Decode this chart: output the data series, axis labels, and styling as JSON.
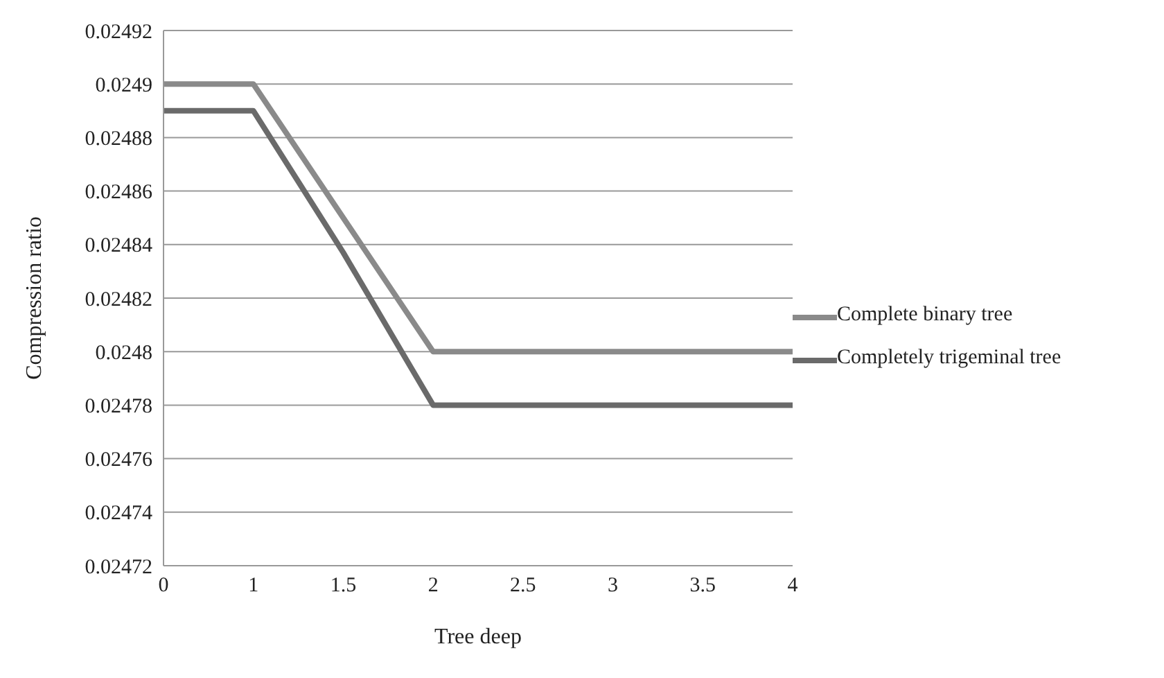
{
  "chart_data": {
    "type": "line",
    "xlabel": "Tree deep",
    "ylabel": "Compression ratio",
    "categories": [
      "0",
      "1",
      "1.5",
      "2",
      "2.5",
      "3",
      "3.5",
      "4"
    ],
    "series": [
      {
        "name": "Complete binary tree",
        "color": "#8a8a8a",
        "values": [
          0.0249,
          0.0249,
          0.02485,
          0.0248,
          0.0248,
          0.0248,
          0.0248,
          0.0248
        ]
      },
      {
        "name": "Completely trigeminal tree",
        "color": "#6a6a6a",
        "values": [
          0.02489,
          0.02489,
          0.024837,
          0.02478,
          0.02478,
          0.02478,
          0.02478,
          0.02478
        ]
      }
    ],
    "ylim": [
      0.02472,
      0.02492
    ],
    "yticks": [
      0.02472,
      0.02474,
      0.02476,
      0.02478,
      0.0248,
      0.02482,
      0.02484,
      0.02486,
      0.02488,
      0.0249,
      0.02492
    ],
    "grid": "y",
    "legend": "right",
    "marker": "none",
    "line_style": "solid"
  }
}
